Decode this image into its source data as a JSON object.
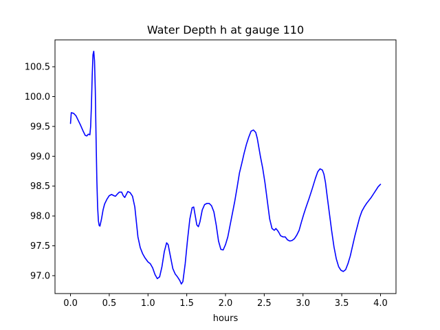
{
  "chart_data": {
    "type": "line",
    "title": "Water Depth h at gauge 110",
    "xlabel": "hours",
    "ylabel": "",
    "xlim": [
      -0.2,
      4.2
    ],
    "ylim": [
      96.7,
      100.95
    ],
    "xticks": [
      0.0,
      0.5,
      1.0,
      1.5,
      2.0,
      2.5,
      3.0,
      3.5,
      4.0
    ],
    "xtick_labels": [
      "0.0",
      "0.5",
      "1.0",
      "1.5",
      "2.0",
      "2.5",
      "3.0",
      "3.5",
      "4.0"
    ],
    "yticks": [
      97.0,
      97.5,
      98.0,
      98.5,
      99.0,
      99.5,
      100.0,
      100.5
    ],
    "ytick_labels": [
      "97.0",
      "97.5",
      "98.0",
      "98.5",
      "99.0",
      "99.5",
      "100.0",
      "100.5"
    ],
    "grid": false,
    "series": [
      {
        "color": "#0000ff",
        "x": [
          0.0,
          0.01,
          0.04,
          0.07,
          0.1,
          0.13,
          0.16,
          0.19,
          0.21,
          0.23,
          0.25,
          0.26,
          0.27,
          0.28,
          0.29,
          0.3,
          0.31,
          0.32,
          0.33,
          0.34,
          0.35,
          0.36,
          0.37,
          0.38,
          0.4,
          0.42,
          0.44,
          0.47,
          0.5,
          0.53,
          0.56,
          0.58,
          0.6,
          0.63,
          0.66,
          0.68,
          0.7,
          0.72,
          0.74,
          0.77,
          0.8,
          0.83,
          0.85,
          0.87,
          0.9,
          0.93,
          0.96,
          1.0,
          1.03,
          1.06,
          1.09,
          1.12,
          1.15,
          1.18,
          1.21,
          1.24,
          1.26,
          1.29,
          1.32,
          1.35,
          1.38,
          1.41,
          1.43,
          1.45,
          1.48,
          1.51,
          1.54,
          1.57,
          1.59,
          1.61,
          1.63,
          1.65,
          1.67,
          1.7,
          1.73,
          1.76,
          1.79,
          1.82,
          1.85,
          1.88,
          1.91,
          1.94,
          1.97,
          2.0,
          2.03,
          2.06,
          2.09,
          2.12,
          2.15,
          2.18,
          2.21,
          2.24,
          2.27,
          2.3,
          2.33,
          2.36,
          2.39,
          2.41,
          2.43,
          2.45,
          2.48,
          2.51,
          2.54,
          2.57,
          2.6,
          2.63,
          2.65,
          2.67,
          2.69,
          2.71,
          2.74,
          2.77,
          2.8,
          2.83,
          2.86,
          2.89,
          2.92,
          2.95,
          2.98,
          3.01,
          3.04,
          3.08,
          3.12,
          3.16,
          3.19,
          3.22,
          3.25,
          3.27,
          3.29,
          3.31,
          3.34,
          3.37,
          3.4,
          3.43,
          3.46,
          3.49,
          3.52,
          3.55,
          3.58,
          3.61,
          3.64,
          3.67,
          3.7,
          3.73,
          3.76,
          3.79,
          3.82,
          3.85,
          3.88,
          3.91,
          3.94,
          3.97,
          4.0
        ],
        "y": [
          99.55,
          99.73,
          99.72,
          99.68,
          99.6,
          99.52,
          99.43,
          99.35,
          99.34,
          99.37,
          99.36,
          99.5,
          99.85,
          100.35,
          100.7,
          100.76,
          100.6,
          100.1,
          99.3,
          98.6,
          98.15,
          97.92,
          97.84,
          97.83,
          97.95,
          98.1,
          98.2,
          98.28,
          98.34,
          98.36,
          98.34,
          98.33,
          98.36,
          98.4,
          98.4,
          98.34,
          98.31,
          98.36,
          98.41,
          98.39,
          98.33,
          98.15,
          97.9,
          97.65,
          97.47,
          97.37,
          97.3,
          97.23,
          97.2,
          97.13,
          97.02,
          96.95,
          96.98,
          97.15,
          97.4,
          97.55,
          97.52,
          97.32,
          97.12,
          97.03,
          96.98,
          96.92,
          96.86,
          96.9,
          97.2,
          97.6,
          97.95,
          98.14,
          98.15,
          98.0,
          97.85,
          97.82,
          97.9,
          98.1,
          98.19,
          98.21,
          98.21,
          98.17,
          98.07,
          97.85,
          97.58,
          97.44,
          97.43,
          97.52,
          97.65,
          97.85,
          98.05,
          98.25,
          98.48,
          98.72,
          98.88,
          99.05,
          99.2,
          99.32,
          99.42,
          99.44,
          99.4,
          99.3,
          99.15,
          99.0,
          98.8,
          98.55,
          98.25,
          97.95,
          97.79,
          97.76,
          97.79,
          97.76,
          97.72,
          97.67,
          97.65,
          97.65,
          97.6,
          97.58,
          97.59,
          97.62,
          97.68,
          97.76,
          97.9,
          98.03,
          98.15,
          98.3,
          98.46,
          98.63,
          98.74,
          98.79,
          98.77,
          98.7,
          98.56,
          98.35,
          98.05,
          97.75,
          97.48,
          97.28,
          97.15,
          97.09,
          97.07,
          97.1,
          97.2,
          97.33,
          97.5,
          97.67,
          97.82,
          97.97,
          98.08,
          98.15,
          98.21,
          98.26,
          98.31,
          98.37,
          98.43,
          98.49,
          98.53
        ]
      }
    ]
  }
}
